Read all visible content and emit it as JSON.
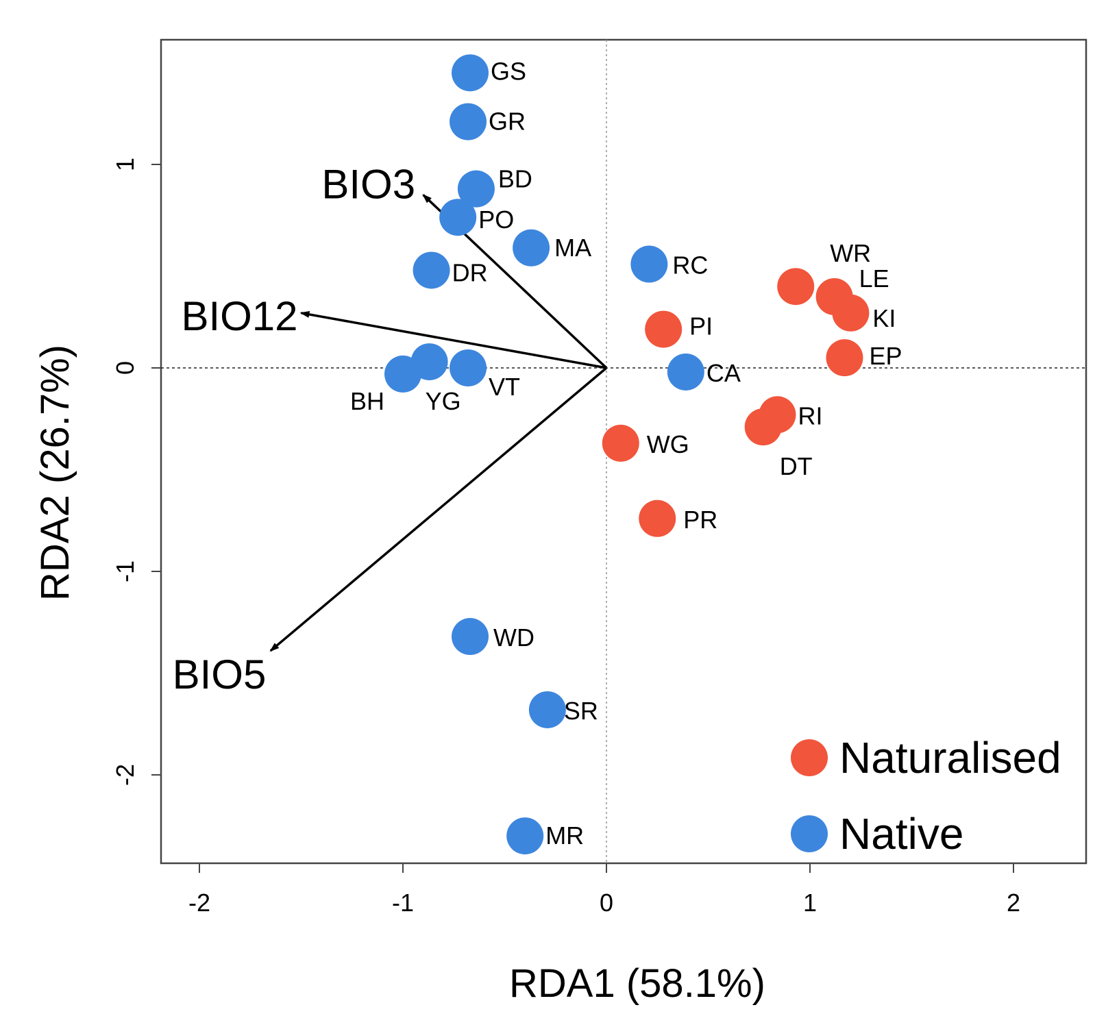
{
  "chart_data": {
    "type": "scatter",
    "subtype": "RDA biplot",
    "title": "",
    "xlabel": "RDA1 (58.1%)",
    "ylabel": "RDA2 (26.7%)",
    "xlim": [
      -2.2,
      2.35
    ],
    "ylim": [
      -2.45,
      1.6
    ],
    "xticks": [
      -2,
      -1,
      0,
      1,
      2
    ],
    "yticks": [
      -2,
      -1,
      0,
      1
    ],
    "xtick_labels": [
      "-2",
      "-1",
      "0",
      "1",
      "2"
    ],
    "ytick_labels": [
      "-2",
      "-1",
      "0",
      "1"
    ],
    "reference_lines": "dotted at x=0 and y=0",
    "colors": {
      "Naturalised": "#f1553b",
      "Native": "#3d86de"
    },
    "series": [
      {
        "name": "Native",
        "points": [
          {
            "label": "GS",
            "x": -0.67,
            "y": 1.45
          },
          {
            "label": "GR",
            "x": -0.68,
            "y": 1.21
          },
          {
            "label": "BD",
            "x": -0.64,
            "y": 0.88
          },
          {
            "label": "PO",
            "x": -0.73,
            "y": 0.74
          },
          {
            "label": "MA",
            "x": -0.37,
            "y": 0.59
          },
          {
            "label": "DR",
            "x": -0.86,
            "y": 0.48
          },
          {
            "label": "RC",
            "x": 0.21,
            "y": 0.51
          },
          {
            "label": "CA",
            "x": 0.39,
            "y": -0.02
          },
          {
            "label": "VT",
            "x": -0.68,
            "y": 0.0
          },
          {
            "label": "YG",
            "x": -0.87,
            "y": 0.03
          },
          {
            "label": "BH",
            "x": -1.0,
            "y": -0.03
          },
          {
            "label": "WD",
            "x": -0.67,
            "y": -1.32
          },
          {
            "label": "SR",
            "x": -0.29,
            "y": -1.68
          },
          {
            "label": "MR",
            "x": -0.4,
            "y": -2.3
          }
        ]
      },
      {
        "name": "Naturalised",
        "points": [
          {
            "label": "WR",
            "x": 0.93,
            "y": 0.4
          },
          {
            "label": "LE",
            "x": 1.12,
            "y": 0.35
          },
          {
            "label": "KI",
            "x": 1.2,
            "y": 0.27
          },
          {
            "label": "EP",
            "x": 1.17,
            "y": 0.05
          },
          {
            "label": "PI",
            "x": 0.28,
            "y": 0.19
          },
          {
            "label": "RI",
            "x": 0.84,
            "y": -0.23
          },
          {
            "label": "DT",
            "x": 0.77,
            "y": -0.29
          },
          {
            "label": "WG",
            "x": 0.07,
            "y": -0.37
          },
          {
            "label": "PR",
            "x": 0.25,
            "y": -0.74
          }
        ]
      }
    ],
    "vectors": [
      {
        "label": "BIO3",
        "x": -0.9,
        "y": 0.85
      },
      {
        "label": "BIO12",
        "x": -1.5,
        "y": 0.27
      },
      {
        "label": "BIO5",
        "x": -1.65,
        "y": -1.39
      }
    ],
    "legend": {
      "position": "bottom-right",
      "entries": [
        {
          "label": "Naturalised",
          "series": "Naturalised"
        },
        {
          "label": "Native",
          "series": "Native"
        }
      ]
    }
  }
}
